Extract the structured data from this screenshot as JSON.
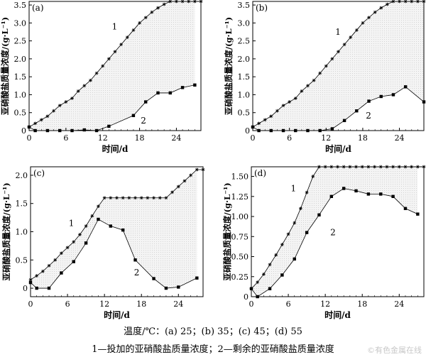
{
  "caption": {
    "line1": "温度/℃：(a) 25；(b) 35；(c) 45；(d) 55",
    "line2": "1—投加的亚硝酸盐质量浓度；2—剩余的亚硝酸盐质量浓度"
  },
  "watermark": "©有色金属在线",
  "chart_data": [
    {
      "type": "line",
      "panel_label": "(a)",
      "xlabel": "时间/d",
      "ylabel": "亚硝酸盐质量浓度/(g·L⁻¹)",
      "xlim": [
        0,
        28
      ],
      "ylim": [
        0,
        3.6
      ],
      "xticks": [
        0,
        6,
        12,
        18,
        24
      ],
      "xtick_labels": [
        "0",
        "6",
        "12",
        "18",
        "24"
      ],
      "yticks": [
        0,
        0.5,
        1.0,
        1.5,
        2.0,
        2.5,
        3.0,
        3.5
      ],
      "ytick_labels": [
        "0",
        "0.5",
        "1.0",
        "1.5",
        "2.0",
        "2.5",
        "3.0",
        "3.5"
      ],
      "fill_between": true,
      "series": [
        {
          "name": "1",
          "marker": "asterisk",
          "x": [
            0,
            1,
            2,
            3,
            4,
            5,
            6,
            7,
            8,
            9,
            10,
            11,
            12,
            13,
            14,
            15,
            16,
            17,
            18,
            19,
            20,
            21,
            22,
            23,
            24,
            25,
            26,
            27,
            28
          ],
          "y": [
            0.1,
            0.2,
            0.3,
            0.4,
            0.55,
            0.7,
            0.8,
            0.9,
            1.1,
            1.25,
            1.4,
            1.6,
            1.8,
            2.0,
            2.2,
            2.4,
            2.6,
            2.8,
            3.0,
            3.15,
            3.3,
            3.42,
            3.52,
            3.6,
            3.6,
            3.6,
            3.6,
            3.6,
            3.6
          ]
        },
        {
          "name": "2",
          "marker": "square",
          "x": [
            0,
            1,
            3,
            5,
            7,
            9,
            11,
            13,
            17,
            19,
            21,
            23,
            25,
            27
          ],
          "y": [
            0.1,
            0,
            0,
            0,
            0,
            0.02,
            0,
            0.12,
            0.42,
            0.8,
            1.05,
            1.05,
            1.2,
            1.27
          ]
        }
      ],
      "series_labels": [
        {
          "text": "1",
          "x": 13.5,
          "y": 2.9
        },
        {
          "text": "2",
          "x": 18.2,
          "y": 0.28
        }
      ]
    },
    {
      "type": "line",
      "panel_label": "(b)",
      "xlabel": "时间/d",
      "ylabel": "亚硝酸盐质量浓度/(g·L⁻¹)",
      "xlim": [
        0,
        28
      ],
      "ylim": [
        0,
        3.6
      ],
      "xticks": [
        0,
        6,
        12,
        18,
        24
      ],
      "xtick_labels": [
        "0",
        "6",
        "12",
        "18",
        "24"
      ],
      "yticks": [
        0,
        0.5,
        1.0,
        1.5,
        2.0,
        2.5,
        3.0,
        3.5
      ],
      "ytick_labels": [
        "0",
        "0.5",
        "1.0",
        "1.5",
        "2.0",
        "2.5",
        "3.0",
        "3.5"
      ],
      "fill_between": true,
      "series": [
        {
          "name": "1",
          "marker": "asterisk",
          "x": [
            0,
            1,
            2,
            3,
            4,
            5,
            6,
            7,
            8,
            9,
            10,
            11,
            12,
            13,
            14,
            15,
            16,
            17,
            18,
            19,
            20,
            21,
            22,
            23,
            24,
            25,
            26,
            27,
            28
          ],
          "y": [
            0.1,
            0.2,
            0.3,
            0.4,
            0.55,
            0.7,
            0.8,
            0.9,
            1.1,
            1.25,
            1.4,
            1.6,
            1.8,
            2.0,
            2.2,
            2.4,
            2.6,
            2.8,
            3.0,
            3.15,
            3.3,
            3.42,
            3.52,
            3.6,
            3.6,
            3.6,
            3.6,
            3.6,
            3.6
          ]
        },
        {
          "name": "2",
          "marker": "square",
          "x": [
            0,
            1,
            3,
            5,
            7,
            9,
            11,
            13,
            15,
            17,
            19,
            21,
            23,
            25,
            28
          ],
          "y": [
            0.1,
            0,
            0,
            0,
            0,
            0,
            0,
            0.05,
            0.28,
            0.55,
            0.82,
            0.95,
            1.0,
            1.22,
            0.8
          ]
        }
      ],
      "series_labels": [
        {
          "text": "1",
          "x": 13.5,
          "y": 2.75
        },
        {
          "text": "2",
          "x": 18.5,
          "y": 0.42
        }
      ]
    },
    {
      "type": "line",
      "panel_label": "(c)",
      "xlabel": "时间/d",
      "ylabel": "亚硝酸盐质量浓度/(g·L⁻¹)",
      "xlim": [
        0,
        28
      ],
      "ylim": [
        -0.15,
        2.15
      ],
      "xticks": [
        0,
        6,
        12,
        18,
        24
      ],
      "xtick_labels": [
        "0",
        "6",
        "12",
        "18",
        "24"
      ],
      "yticks": [
        0,
        0.5,
        1.0,
        1.5,
        2.0
      ],
      "ytick_labels": [
        "0",
        "0.5",
        "1.0",
        "1.5",
        "2.0"
      ],
      "fill_between": true,
      "series": [
        {
          "name": "1",
          "marker": "asterisk",
          "x": [
            0,
            1,
            2,
            3,
            4,
            5,
            6,
            7,
            8,
            9,
            10,
            11,
            12,
            13,
            14,
            15,
            16,
            17,
            18,
            19,
            20,
            21,
            22,
            23,
            24,
            25,
            26,
            27,
            28
          ],
          "y": [
            0.15,
            0.22,
            0.3,
            0.4,
            0.5,
            0.62,
            0.72,
            0.82,
            0.95,
            1.1,
            1.28,
            1.45,
            1.6,
            1.6,
            1.6,
            1.6,
            1.6,
            1.6,
            1.6,
            1.6,
            1.6,
            1.6,
            1.6,
            1.7,
            1.8,
            1.9,
            2.0,
            2.1,
            2.1
          ]
        },
        {
          "name": "2",
          "marker": "square",
          "x": [
            0,
            1,
            3,
            5,
            7,
            9,
            11,
            13,
            15,
            17,
            20,
            22,
            24,
            27
          ],
          "y": [
            0.1,
            0,
            0,
            0.27,
            0.47,
            0.8,
            1.22,
            1.1,
            1.03,
            0.5,
            0.17,
            0,
            0.02,
            0.18
          ]
        }
      ],
      "series_labels": [
        {
          "text": "1",
          "x": 6.2,
          "y": 1.15
        },
        {
          "text": "2",
          "x": 16.8,
          "y": 0.28
        }
      ]
    },
    {
      "type": "line",
      "panel_label": "(d)",
      "xlabel": "时间/d",
      "ylabel": "亚硝酸盐质量浓度/(g·L⁻¹)",
      "xlim": [
        0,
        28
      ],
      "ylim": [
        0,
        1.62
      ],
      "xticks": [
        0,
        6,
        12,
        18,
        24
      ],
      "xtick_labels": [
        "0",
        "6",
        "12",
        "18",
        "24"
      ],
      "yticks": [
        0,
        0.25,
        0.5,
        0.75,
        1.0,
        1.25,
        1.5
      ],
      "ytick_labels": [
        "0",
        "0.25",
        "0.50",
        "0.75",
        "1.00",
        "1.25",
        "1.50"
      ],
      "fill_between": true,
      "series": [
        {
          "name": "1",
          "marker": "asterisk",
          "x": [
            0,
            1,
            2,
            3,
            4,
            5,
            6,
            7,
            8,
            9,
            10,
            11,
            12,
            13,
            14,
            15,
            16,
            17,
            18,
            19,
            20,
            21,
            22,
            23,
            24,
            25,
            26,
            27,
            28
          ],
          "y": [
            0.1,
            0.18,
            0.28,
            0.4,
            0.52,
            0.65,
            0.78,
            0.92,
            1.1,
            1.3,
            1.5,
            1.62,
            1.62,
            1.62,
            1.62,
            1.62,
            1.62,
            1.62,
            1.62,
            1.62,
            1.62,
            1.62,
            1.62,
            1.62,
            1.62,
            1.62,
            1.62,
            1.62,
            1.62
          ]
        },
        {
          "name": "2",
          "marker": "square",
          "x": [
            0,
            1,
            3,
            5,
            7,
            9,
            11,
            13,
            15,
            17,
            19,
            21,
            23,
            25,
            27
          ],
          "y": [
            0.1,
            0,
            0.1,
            0.27,
            0.47,
            0.8,
            1.02,
            1.25,
            1.35,
            1.32,
            1.28,
            1.28,
            1.25,
            1.1,
            1.03
          ]
        }
      ],
      "series_labels": [
        {
          "text": "1",
          "x": 6.4,
          "y": 1.35
        },
        {
          "text": "2",
          "x": 12.8,
          "y": 0.8
        }
      ]
    }
  ]
}
